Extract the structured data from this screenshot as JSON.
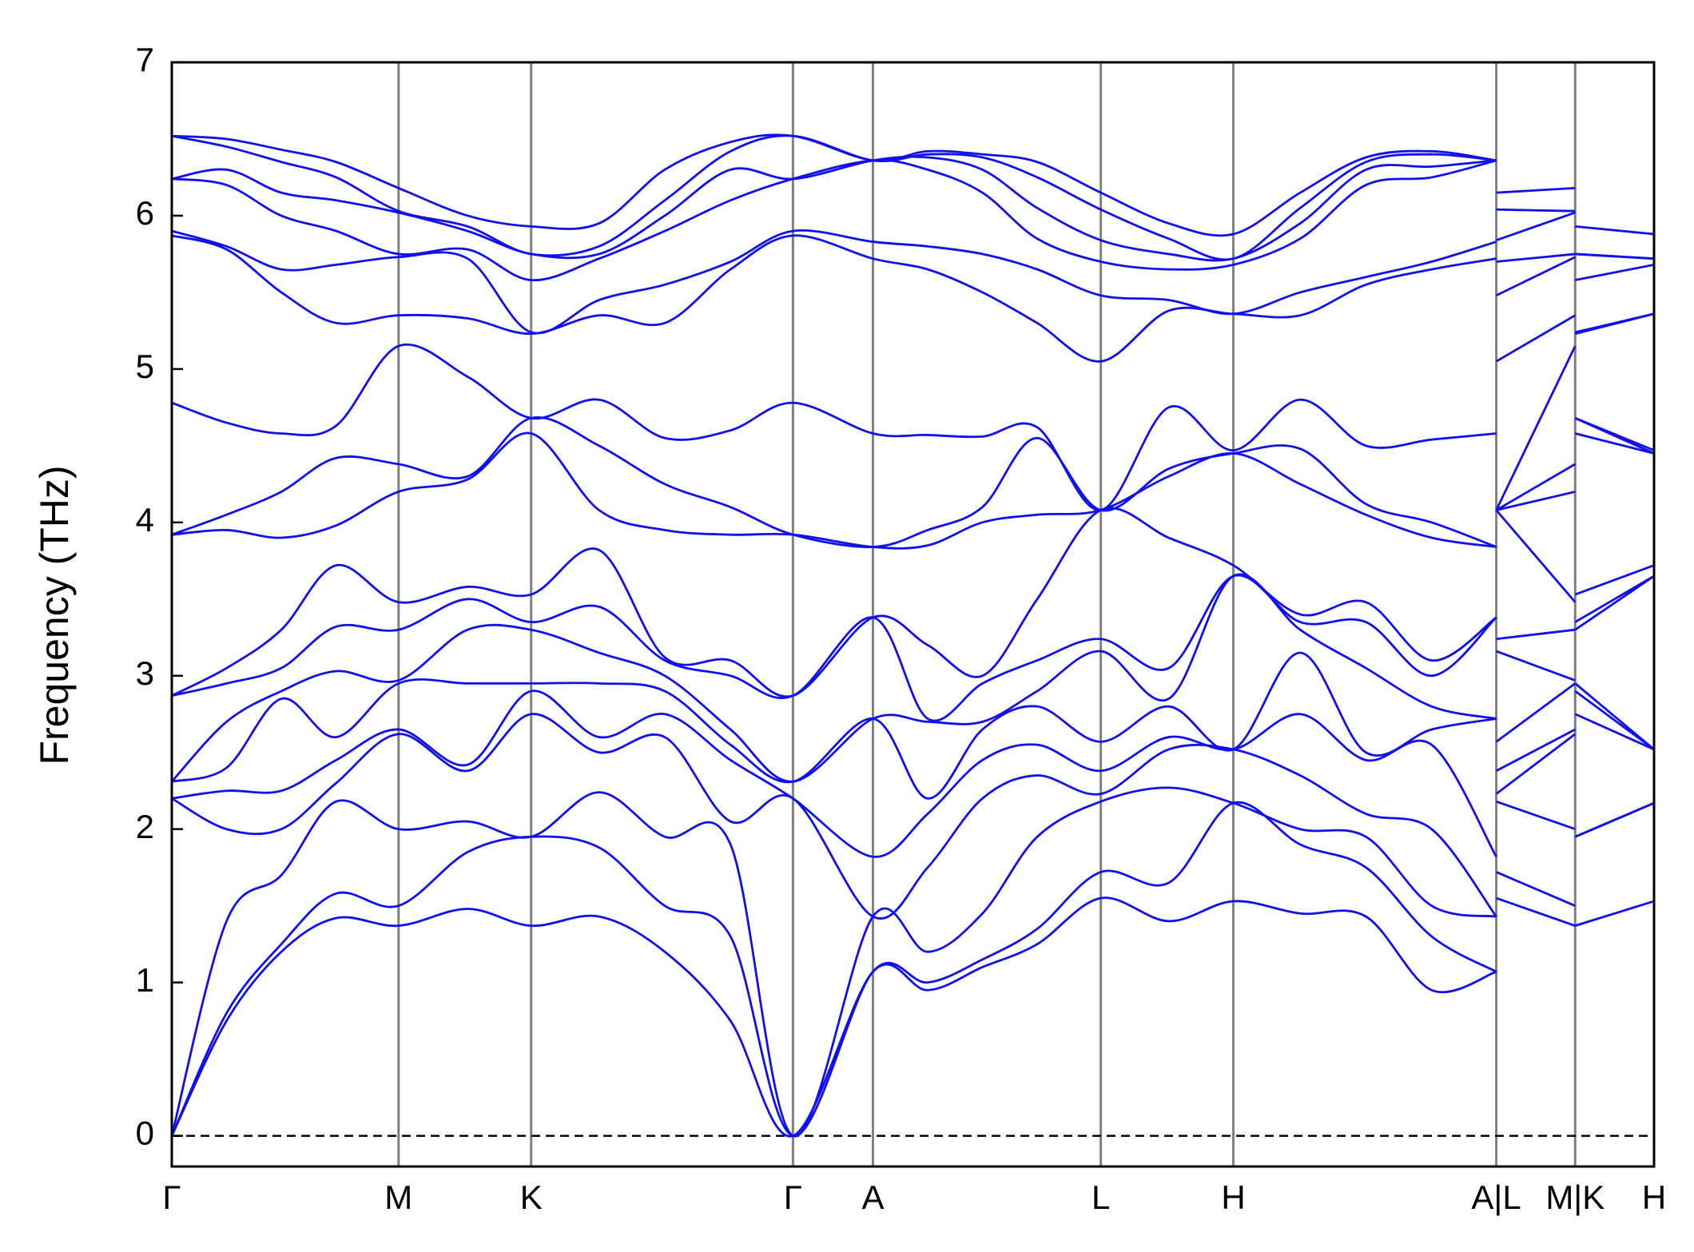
{
  "chart_data": {
    "type": "line",
    "ylabel": "Frequency (THz)",
    "color": "#1010ee",
    "grid": "x",
    "zero_line": true,
    "xlim": [
      0,
      13.53
    ],
    "ylim": [
      -0.2,
      7
    ],
    "yticks": [
      0,
      1,
      2,
      3,
      4,
      5,
      6,
      7
    ],
    "xticks": [
      {
        "value": 0,
        "label": "Γ"
      },
      {
        "value": 2.07,
        "label": "M"
      },
      {
        "value": 3.28,
        "label": "K"
      },
      {
        "value": 5.67,
        "label": "Γ"
      },
      {
        "value": 6.4,
        "label": "A"
      },
      {
        "value": 8.48,
        "label": "L"
      },
      {
        "value": 9.69,
        "label": "H"
      },
      {
        "value": 12.09,
        "label": "A|L"
      },
      {
        "value": 12.81,
        "label": "M|K"
      },
      {
        "value": 13.53,
        "label": "H"
      }
    ],
    "x": [
      0,
      0.5,
      1.0,
      1.5,
      2.07,
      2.7,
      3.28,
      3.9,
      4.5,
      5.1,
      5.67,
      6.4,
      6.9,
      7.4,
      7.9,
      8.48,
      9.1,
      9.69,
      10.3,
      10.9,
      11.5,
      12.09,
      12.09,
      12.09,
      12.81,
      12.81,
      12.81,
      13.53
    ],
    "series": [
      {
        "values": [
          0,
          0.75,
          1.2,
          1.42,
          1.37,
          1.48,
          1.37,
          1.43,
          1.2,
          0.75,
          0,
          1.07,
          0.95,
          1.1,
          1.25,
          1.55,
          1.4,
          1.53,
          1.45,
          1.43,
          0.95,
          1.07,
          null,
          1.55,
          1.37,
          null,
          1.37,
          1.53
        ]
      },
      {
        "values": [
          0,
          0.8,
          1.25,
          1.58,
          1.5,
          1.85,
          1.95,
          1.88,
          1.5,
          1.3,
          0,
          1.07,
          1.0,
          1.15,
          1.35,
          1.72,
          1.65,
          2.17,
          1.9,
          1.75,
          1.3,
          1.07,
          null,
          1.72,
          1.5,
          null,
          1.95,
          2.17
        ]
      },
      {
        "values": [
          0,
          1.4,
          1.7,
          2.18,
          2.0,
          2.05,
          1.95,
          2.24,
          1.95,
          1.9,
          0,
          1.43,
          1.2,
          1.45,
          1.95,
          2.18,
          2.27,
          2.17,
          2.0,
          1.95,
          1.5,
          1.43,
          null,
          2.18,
          2.0,
          null,
          1.95,
          2.17
        ]
      },
      {
        "values": [
          2.2,
          2.0,
          2.0,
          2.3,
          2.62,
          2.38,
          2.75,
          2.5,
          2.6,
          2.05,
          2.2,
          1.43,
          1.75,
          2.2,
          2.35,
          2.23,
          2.52,
          2.52,
          2.35,
          2.1,
          2.0,
          1.43,
          null,
          2.23,
          2.62,
          null,
          2.75,
          2.52
        ]
      },
      {
        "values": [
          2.2,
          2.25,
          2.25,
          2.45,
          2.65,
          2.42,
          2.9,
          2.6,
          2.75,
          2.45,
          2.2,
          1.82,
          2.1,
          2.45,
          2.55,
          2.38,
          2.6,
          2.52,
          2.75,
          2.45,
          2.55,
          1.82,
          null,
          2.38,
          2.65,
          null,
          2.9,
          2.52
        ]
      },
      {
        "values": [
          2.31,
          2.4,
          2.85,
          2.6,
          2.95,
          2.95,
          2.95,
          2.95,
          2.9,
          2.55,
          2.31,
          2.72,
          2.2,
          2.65,
          2.8,
          2.57,
          2.8,
          2.52,
          3.15,
          2.5,
          2.65,
          2.72,
          null,
          2.57,
          2.95,
          null,
          2.95,
          2.52
        ]
      },
      {
        "values": [
          2.31,
          2.7,
          2.9,
          3.03,
          2.97,
          3.3,
          3.3,
          3.15,
          3.0,
          2.65,
          2.31,
          2.72,
          2.7,
          2.7,
          2.9,
          3.16,
          2.85,
          3.65,
          3.3,
          3.05,
          2.8,
          2.72,
          null,
          3.16,
          2.97,
          null,
          3.3,
          3.65
        ]
      },
      {
        "values": [
          2.87,
          2.95,
          3.05,
          3.32,
          3.3,
          3.5,
          3.35,
          3.45,
          3.1,
          3.0,
          2.87,
          3.38,
          2.72,
          2.95,
          3.1,
          3.24,
          3.05,
          3.65,
          3.35,
          3.35,
          3.0,
          3.38,
          null,
          3.24,
          3.3,
          null,
          3.35,
          3.65
        ]
      },
      {
        "values": [
          2.87,
          3.05,
          3.3,
          3.72,
          3.48,
          3.58,
          3.53,
          3.82,
          3.12,
          3.1,
          2.87,
          3.38,
          3.2,
          3.0,
          3.5,
          4.08,
          3.9,
          3.72,
          3.4,
          3.48,
          3.1,
          3.38,
          null,
          4.08,
          3.48,
          null,
          3.53,
          3.72
        ]
      },
      {
        "values": [
          3.92,
          3.95,
          3.9,
          3.98,
          4.2,
          4.28,
          4.58,
          4.08,
          3.95,
          3.92,
          3.92,
          3.84,
          3.85,
          4.0,
          4.05,
          4.08,
          4.3,
          4.45,
          4.25,
          4.05,
          3.9,
          3.84,
          null,
          4.08,
          4.2,
          null,
          4.58,
          4.45
        ]
      },
      {
        "values": [
          3.92,
          4.05,
          4.2,
          4.42,
          4.38,
          4.3,
          4.68,
          4.5,
          4.25,
          4.1,
          3.92,
          3.84,
          3.95,
          4.1,
          4.55,
          4.08,
          4.35,
          4.45,
          4.48,
          4.12,
          4.0,
          3.84,
          null,
          4.08,
          4.38,
          null,
          4.68,
          4.45
        ]
      },
      {
        "values": [
          4.78,
          4.65,
          4.58,
          4.63,
          5.15,
          4.95,
          4.68,
          4.8,
          4.55,
          4.6,
          4.78,
          4.58,
          4.57,
          4.56,
          4.62,
          4.08,
          4.75,
          4.47,
          4.8,
          4.5,
          4.54,
          4.58,
          null,
          4.08,
          5.15,
          null,
          4.68,
          4.47
        ]
      },
      {
        "values": [
          5.87,
          5.78,
          5.5,
          5.3,
          5.35,
          5.33,
          5.23,
          5.35,
          5.3,
          5.65,
          5.87,
          5.72,
          5.65,
          5.5,
          5.3,
          5.05,
          5.38,
          5.36,
          5.35,
          5.55,
          5.65,
          5.72,
          null,
          5.05,
          5.35,
          null,
          5.23,
          5.36
        ]
      },
      {
        "values": [
          5.9,
          5.8,
          5.65,
          5.68,
          5.73,
          5.72,
          5.24,
          5.45,
          5.55,
          5.7,
          5.9,
          5.83,
          5.8,
          5.75,
          5.65,
          5.48,
          5.45,
          5.36,
          5.5,
          5.6,
          5.7,
          5.83,
          null,
          5.48,
          5.73,
          null,
          5.24,
          5.36
        ]
      },
      {
        "values": [
          6.24,
          6.2,
          6.0,
          5.9,
          5.75,
          5.78,
          5.58,
          5.72,
          5.9,
          6.1,
          6.24,
          6.36,
          6.3,
          6.15,
          5.85,
          5.7,
          5.65,
          5.68,
          5.85,
          6.2,
          6.25,
          6.36,
          null,
          5.7,
          5.75,
          null,
          5.58,
          5.68
        ]
      },
      {
        "values": [
          6.24,
          6.3,
          6.15,
          6.1,
          6.02,
          5.9,
          5.75,
          5.75,
          6.0,
          6.3,
          6.24,
          6.36,
          6.38,
          6.3,
          6.05,
          5.84,
          5.75,
          5.72,
          5.95,
          6.3,
          6.32,
          6.36,
          null,
          5.84,
          6.02,
          null,
          5.75,
          5.72
        ]
      },
      {
        "values": [
          6.52,
          6.45,
          6.35,
          6.25,
          6.03,
          5.93,
          5.75,
          5.8,
          6.1,
          6.42,
          6.52,
          6.36,
          6.4,
          6.38,
          6.25,
          6.04,
          5.85,
          5.72,
          6.05,
          6.35,
          6.4,
          6.36,
          null,
          6.04,
          6.03,
          null,
          5.75,
          5.72
        ]
      },
      {
        "values": [
          6.52,
          6.5,
          6.43,
          6.35,
          6.18,
          6.0,
          5.93,
          5.95,
          6.3,
          6.48,
          6.52,
          6.36,
          6.42,
          6.4,
          6.35,
          6.15,
          5.95,
          5.88,
          6.15,
          6.38,
          6.42,
          6.36,
          null,
          6.15,
          6.18,
          null,
          5.93,
          5.88
        ]
      }
    ]
  }
}
